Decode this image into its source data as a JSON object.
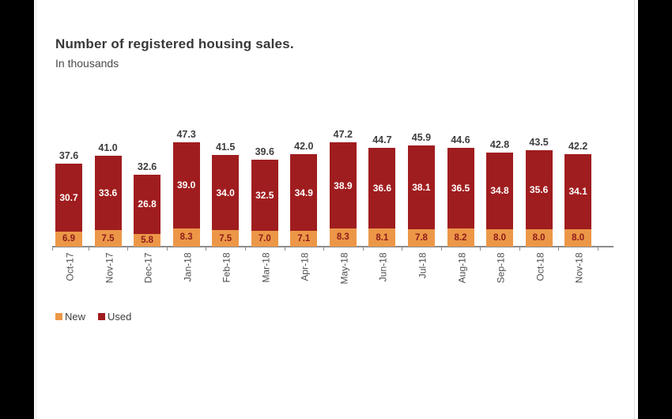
{
  "chart_data": {
    "type": "bar",
    "stacked": true,
    "title": "Number of registered housing sales.",
    "subtitle": "In thousands",
    "categories": [
      "Oct-17",
      "Nov-17",
      "Dec-17",
      "Jan-18",
      "Feb-18",
      "Mar-18",
      "Apr-18",
      "May-18",
      "Jun-18",
      "Jul-18",
      "Aug-18",
      "Sep-18",
      "Oct-18",
      "Nov-18"
    ],
    "series": [
      {
        "name": "New",
        "color": "#EC9747",
        "label_color": "#8E1A1A",
        "values": [
          6.9,
          7.5,
          5.8,
          8.3,
          7.5,
          7.0,
          7.1,
          8.3,
          8.1,
          7.8,
          8.2,
          8.0,
          8.0,
          8.0
        ]
      },
      {
        "name": "Used",
        "color": "#A01D1F",
        "label_color": "#FFFFFF",
        "values": [
          30.7,
          33.6,
          26.8,
          39.0,
          34.0,
          32.5,
          34.9,
          38.9,
          36.6,
          38.1,
          36.5,
          34.8,
          35.6,
          34.1
        ]
      }
    ],
    "totals": [
      37.6,
      41.0,
      32.6,
      47.3,
      41.5,
      39.6,
      42.0,
      47.2,
      44.7,
      45.9,
      44.6,
      42.8,
      43.5,
      42.2
    ],
    "value_labels": true,
    "grid": false,
    "legend_position": "bottom-left",
    "xlabel": "",
    "ylabel": "",
    "ylim": [
      0,
      50
    ]
  },
  "page": {
    "background": "#FFFFFF",
    "side_bar_color": "#000000"
  }
}
